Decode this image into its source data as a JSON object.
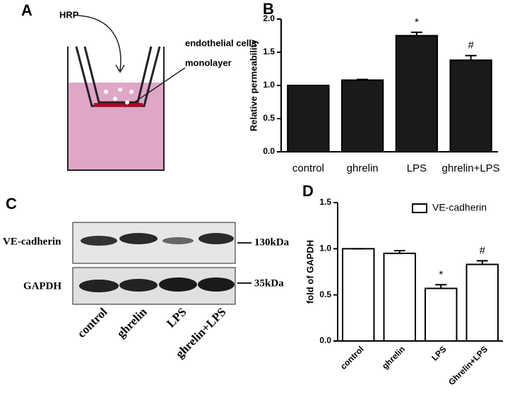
{
  "panel_labels": [
    "A",
    "B",
    "C",
    "D"
  ],
  "diagram": {
    "labels": [
      "HRP",
      "endothelial cells",
      "monolayer"
    ]
  },
  "blot": {
    "rows": [
      {
        "label": "VE-cadherin",
        "size": "130kDa"
      },
      {
        "label": "GAPDH",
        "size": "35kDa"
      }
    ],
    "lanes": [
      "control",
      "ghrelin",
      "LPS",
      "ghrelin+LPS"
    ]
  },
  "chart_data": [
    {
      "type": "bar",
      "ylabel": "Relative permeability",
      "categories": [
        "control",
        "ghrelin",
        "LPS",
        "ghrelin+LPS"
      ],
      "values": [
        1.0,
        1.08,
        1.75,
        1.38
      ],
      "errors": [
        0,
        0.01,
        0.05,
        0.07
      ],
      "color": "#1a1a1a",
      "annotations": [
        {
          "category": "LPS",
          "text": "*"
        },
        {
          "category": "ghrelin+LPS",
          "text": "#"
        }
      ],
      "ylim": [
        0,
        2
      ],
      "yticks": [
        {
          "value": 0,
          "label": "0.0"
        },
        0.5,
        {
          "value": 1,
          "label": "1.0"
        },
        1.5,
        {
          "value": 2,
          "label": "2.0"
        }
      ]
    },
    {
      "type": "bar",
      "ylabel": "fold of GAPDH",
      "categories": [
        "control",
        "ghrelin",
        "LPS",
        "Ghrelin+LPS"
      ],
      "series": [
        {
          "name": "VE-cadherin",
          "color": "#ffffff",
          "values": [
            1.0,
            0.95,
            0.57,
            0.83
          ],
          "errors": [
            0,
            0.03,
            0.04,
            0.04
          ]
        }
      ],
      "annotations": [
        {
          "category": "LPS",
          "text": "*"
        },
        {
          "category": "Ghrelin+LPS",
          "text": "#"
        }
      ],
      "legend": "top-right",
      "ylim": [
        0,
        1.5
      ],
      "yticks": [
        {
          "value": 0,
          "label": "0.0"
        },
        0.5,
        {
          "value": 1,
          "label": "1.0"
        },
        1.5
      ]
    }
  ]
}
